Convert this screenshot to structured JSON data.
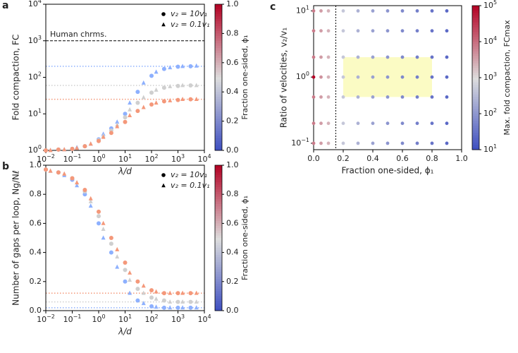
{
  "chart_data": [
    {
      "type": "scatter",
      "panel": "a",
      "xlabel": "λ/d",
      "ylabel": "Fold compaction, FC",
      "xlog": true,
      "ylog": true,
      "xlim": [
        0.01,
        10000
      ],
      "ylim": [
        1,
        10000
      ],
      "xticks": [
        {
          "value": 0.01,
          "label": "10",
          "exp": "−2"
        },
        {
          "value": 0.1,
          "label": "10",
          "exp": "−1"
        },
        {
          "value": 1,
          "label": "10",
          "exp": "0"
        },
        {
          "value": 10,
          "label": "10",
          "exp": "1"
        },
        {
          "value": 100,
          "label": "10",
          "exp": "2"
        },
        {
          "value": 1000,
          "label": "10",
          "exp": "3"
        },
        {
          "value": 10000,
          "label": "10",
          "exp": "4"
        }
      ],
      "yticks": [
        {
          "value": 1,
          "label": "10",
          "exp": "0"
        },
        {
          "value": 10,
          "label": "10",
          "exp": "1"
        },
        {
          "value": 100,
          "label": "10",
          "exp": "2"
        },
        {
          "value": 1000,
          "label": "10",
          "exp": "3"
        },
        {
          "value": 10000,
          "label": "10",
          "exp": "4"
        }
      ],
      "series": [
        {
          "marker": "circle",
          "color": "#8db0fe",
          "x": [
            0.01,
            0.03,
            0.1,
            0.3,
            1,
            3,
            10,
            30,
            100,
            300,
            1000,
            3000
          ],
          "values": [
            1.0,
            1.05,
            1.1,
            1.3,
            2,
            4,
            10,
            40,
            110,
            170,
            195,
            200
          ]
        },
        {
          "marker": "triangle",
          "color": "#8db0fe",
          "x": [
            0.015,
            0.05,
            0.15,
            0.5,
            1.5,
            5,
            15,
            50,
            150,
            500,
            1500,
            5000
          ],
          "values": [
            1.0,
            1.05,
            1.2,
            1.5,
            2.8,
            6,
            20,
            70,
            140,
            185,
            200,
            205
          ]
        },
        {
          "marker": "circle",
          "color": "#cfcfcf",
          "x": [
            0.01,
            0.03,
            0.1,
            0.3,
            1,
            3,
            10,
            30,
            100,
            300,
            1000,
            3000
          ],
          "values": [
            1.0,
            1.05,
            1.1,
            1.3,
            1.9,
            3.5,
            8,
            20,
            38,
            52,
            58,
            60
          ]
        },
        {
          "marker": "triangle",
          "color": "#cfcfcf",
          "x": [
            0.015,
            0.05,
            0.15,
            0.5,
            1.5,
            5,
            15,
            50,
            150,
            500,
            1500,
            5000
          ],
          "values": [
            1.0,
            1.05,
            1.15,
            1.5,
            2.5,
            5,
            13,
            28,
            45,
            56,
            60,
            60
          ]
        },
        {
          "marker": "circle",
          "color": "#f4987a",
          "x": [
            0.01,
            0.03,
            0.1,
            0.3,
            1,
            3,
            10,
            30,
            100,
            300,
            1000,
            3000
          ],
          "values": [
            1.0,
            1.05,
            1.1,
            1.3,
            1.8,
            3,
            6,
            12,
            18,
            22,
            24,
            25
          ]
        },
        {
          "marker": "triangle",
          "color": "#f4987a",
          "x": [
            0.015,
            0.05,
            0.15,
            0.5,
            1.5,
            5,
            15,
            50,
            150,
            500,
            1500,
            5000
          ],
          "values": [
            1.0,
            1.05,
            1.15,
            1.5,
            2.3,
            4.5,
            9,
            15,
            20,
            23,
            25,
            25
          ]
        }
      ],
      "reference_lines": [
        {
          "value": 200,
          "color": "#8db0fe"
        },
        {
          "value": 60,
          "color": "#cfcfcf"
        },
        {
          "value": 25,
          "color": "#f4987a"
        }
      ],
      "annotation_line": {
        "value": 1000,
        "label": "Human chrms."
      },
      "legend": [
        {
          "marker": "circle",
          "label": "v₂ = 10v₁"
        },
        {
          "marker": "triangle",
          "label": "v₂ = 0.1v₁"
        }
      ],
      "colorbar": {
        "label": "Fraction one-sided, ϕ₁",
        "colormap": "coolwarm",
        "lim": [
          0,
          1
        ],
        "ticks": [
          {
            "value": 0,
            "label": "0.0"
          },
          {
            "value": 0.2,
            "label": "0.2"
          },
          {
            "value": 0.4,
            "label": "0.4"
          },
          {
            "value": 0.6,
            "label": "0.6"
          },
          {
            "value": 0.8,
            "label": "0.8"
          },
          {
            "value": 1,
            "label": "1.0"
          }
        ]
      }
    },
    {
      "type": "scatter",
      "panel": "b",
      "xlabel": "λ/d",
      "ylabel": "Number of gaps per loop, Ng/Nℓ",
      "xlog": true,
      "ylog": false,
      "xlim": [
        0.01,
        10000
      ],
      "ylim": [
        0,
        1
      ],
      "xticks": [
        {
          "value": 0.01,
          "label": "10",
          "exp": "−2"
        },
        {
          "value": 0.1,
          "label": "10",
          "exp": "−1"
        },
        {
          "value": 1,
          "label": "10",
          "exp": "0"
        },
        {
          "value": 10,
          "label": "10",
          "exp": "1"
        },
        {
          "value": 100,
          "label": "10",
          "exp": "2"
        },
        {
          "value": 1000,
          "label": "10",
          "exp": "3"
        },
        {
          "value": 10000,
          "label": "10",
          "exp": "4"
        }
      ],
      "yticks": [
        {
          "value": 0,
          "label": "0.0"
        },
        {
          "value": 0.2,
          "label": "0.2"
        },
        {
          "value": 0.4,
          "label": "0.4"
        },
        {
          "value": 0.6,
          "label": "0.6"
        },
        {
          "value": 0.8,
          "label": "0.8"
        },
        {
          "value": 1,
          "label": "1.0"
        }
      ],
      "series": [
        {
          "marker": "circle",
          "color": "#8db0fe",
          "x": [
            0.01,
            0.03,
            0.1,
            0.3,
            1,
            3,
            10,
            30,
            100,
            300,
            1000,
            3000
          ],
          "values": [
            0.97,
            0.95,
            0.9,
            0.8,
            0.6,
            0.4,
            0.2,
            0.07,
            0.03,
            0.02,
            0.02,
            0.02
          ]
        },
        {
          "marker": "triangle",
          "color": "#8db0fe",
          "x": [
            0.015,
            0.05,
            0.15,
            0.5,
            1.5,
            5,
            15,
            50,
            150,
            500,
            1500,
            5000
          ],
          "values": [
            0.96,
            0.93,
            0.86,
            0.72,
            0.5,
            0.3,
            0.12,
            0.05,
            0.025,
            0.02,
            0.02,
            0.02
          ]
        },
        {
          "marker": "circle",
          "color": "#cfcfcf",
          "x": [
            0.01,
            0.03,
            0.1,
            0.3,
            1,
            3,
            10,
            30,
            100,
            300,
            1000,
            3000
          ],
          "values": [
            0.97,
            0.95,
            0.91,
            0.82,
            0.65,
            0.46,
            0.28,
            0.15,
            0.09,
            0.07,
            0.06,
            0.06
          ]
        },
        {
          "marker": "triangle",
          "color": "#cfcfcf",
          "x": [
            0.015,
            0.05,
            0.15,
            0.5,
            1.5,
            5,
            15,
            50,
            150,
            500,
            1500,
            5000
          ],
          "values": [
            0.96,
            0.94,
            0.88,
            0.75,
            0.56,
            0.37,
            0.21,
            0.12,
            0.08,
            0.06,
            0.06,
            0.06
          ]
        },
        {
          "marker": "circle",
          "color": "#f4987a",
          "x": [
            0.01,
            0.03,
            0.1,
            0.3,
            1,
            3,
            10,
            30,
            100,
            300,
            1000,
            3000
          ],
          "values": [
            0.97,
            0.95,
            0.91,
            0.83,
            0.68,
            0.5,
            0.33,
            0.2,
            0.14,
            0.12,
            0.12,
            0.12
          ]
        },
        {
          "marker": "triangle",
          "color": "#f4987a",
          "x": [
            0.015,
            0.05,
            0.15,
            0.5,
            1.5,
            5,
            15,
            50,
            150,
            500,
            1500,
            5000
          ],
          "values": [
            0.96,
            0.94,
            0.88,
            0.77,
            0.6,
            0.42,
            0.26,
            0.17,
            0.13,
            0.12,
            0.12,
            0.12
          ]
        }
      ],
      "reference_lines": [
        {
          "value": 0.02,
          "color": "#8db0fe"
        },
        {
          "value": 0.06,
          "color": "#cfcfcf"
        },
        {
          "value": 0.12,
          "color": "#f4987a"
        }
      ],
      "legend": [
        {
          "marker": "circle",
          "label": "v₂ = 10v₁"
        },
        {
          "marker": "triangle",
          "label": "v₂ = 0.1v₁"
        }
      ],
      "colorbar": {
        "label": "Fraction one-sided, ϕ₁",
        "colormap": "coolwarm",
        "lim": [
          0,
          1
        ],
        "ticks": [
          {
            "value": 0,
            "label": "0.0"
          },
          {
            "value": 0.2,
            "label": "0.2"
          },
          {
            "value": 0.4,
            "label": "0.4"
          },
          {
            "value": 0.6,
            "label": "0.6"
          },
          {
            "value": 0.8,
            "label": "0.8"
          },
          {
            "value": 1,
            "label": "1.0"
          }
        ]
      }
    },
    {
      "type": "heat-scatter",
      "panel": "c",
      "xlabel": "Fraction one-sided, ϕ₁",
      "ylabel": "Ratio of velocities, v₂/v₁",
      "xlog": false,
      "ylog": true,
      "xlim": [
        0,
        1
      ],
      "ylim": [
        0.08,
        12
      ],
      "xticks": [
        {
          "value": 0,
          "label": "0.0"
        },
        {
          "value": 0.2,
          "label": "0.2"
        },
        {
          "value": 0.4,
          "label": "0.4"
        },
        {
          "value": 0.6,
          "label": "0.6"
        },
        {
          "value": 0.8,
          "label": "0.8"
        },
        {
          "value": 1,
          "label": "1.0"
        }
      ],
      "yticks": [
        {
          "value": 0.1,
          "label": "10",
          "exp": "−1"
        },
        {
          "value": 1,
          "label": "10",
          "exp": "0"
        },
        {
          "value": 10,
          "label": "10",
          "exp": "1"
        }
      ],
      "x": [
        0,
        0,
        0,
        0,
        0,
        0,
        0,
        0.05,
        0.05,
        0.05,
        0.05,
        0.05,
        0.05,
        0.05,
        0.1,
        0.1,
        0.1,
        0.1,
        0.1,
        0.1,
        0.1,
        0.2,
        0.2,
        0.2,
        0.2,
        0.2,
        0.2,
        0.2,
        0.3,
        0.3,
        0.3,
        0.3,
        0.3,
        0.3,
        0.3,
        0.4,
        0.4,
        0.4,
        0.4,
        0.4,
        0.4,
        0.4,
        0.5,
        0.5,
        0.5,
        0.5,
        0.5,
        0.5,
        0.5,
        0.6,
        0.6,
        0.6,
        0.6,
        0.6,
        0.6,
        0.6,
        0.7,
        0.7,
        0.7,
        0.7,
        0.7,
        0.7,
        0.7,
        0.8,
        0.8,
        0.8,
        0.8,
        0.8,
        0.8,
        0.8,
        0.9,
        0.9,
        0.9,
        0.9,
        0.9,
        0.9,
        0.9
      ],
      "y": [
        0.1,
        0.2,
        0.5,
        1,
        2,
        5,
        10,
        0.1,
        0.2,
        0.5,
        1,
        2,
        5,
        10,
        0.1,
        0.2,
        0.5,
        1,
        2,
        5,
        10,
        0.1,
        0.2,
        0.5,
        1,
        2,
        5,
        10,
        0.1,
        0.2,
        0.5,
        1,
        2,
        5,
        10,
        0.1,
        0.2,
        0.5,
        1,
        2,
        5,
        10,
        0.1,
        0.2,
        0.5,
        1,
        2,
        5,
        10,
        0.1,
        0.2,
        0.5,
        1,
        2,
        5,
        10,
        0.1,
        0.2,
        0.5,
        1,
        2,
        5,
        10,
        0.1,
        0.2,
        0.5,
        1,
        2,
        5,
        10,
        0.1,
        0.2,
        0.5,
        1,
        2,
        5,
        10
      ],
      "values": [
        8000,
        8000,
        8000,
        100000,
        8000,
        8000,
        8000,
        4000,
        4000,
        4000,
        5000,
        4000,
        4000,
        4000,
        2500,
        2500,
        2500,
        2500,
        2500,
        2500,
        2500,
        500,
        500,
        500,
        500,
        500,
        500,
        500,
        250,
        250,
        250,
        250,
        250,
        250,
        250,
        150,
        150,
        150,
        150,
        150,
        150,
        150,
        100,
        100,
        100,
        100,
        100,
        100,
        100,
        70,
        70,
        70,
        70,
        70,
        70,
        70,
        50,
        50,
        50,
        50,
        50,
        50,
        50,
        35,
        35,
        35,
        35,
        35,
        35,
        35,
        25,
        25,
        25,
        25,
        25,
        25,
        25
      ],
      "highlight": {
        "color": "#fbfbc4",
        "x": [
          0.2,
          0.8
        ],
        "y": [
          0.5,
          2
        ]
      },
      "vline": 0.15,
      "colorbar": {
        "label": "Max. fold compaction, FCmax",
        "colormap": "coolwarm",
        "log": true,
        "lim": [
          10,
          100000
        ],
        "ticks": [
          {
            "value": 10,
            "label": "10",
            "exp": "1"
          },
          {
            "value": 100,
            "label": "10",
            "exp": "2"
          },
          {
            "value": 1000,
            "label": "10",
            "exp": "3"
          },
          {
            "value": 10000,
            "label": "10",
            "exp": "4"
          },
          {
            "value": 100000,
            "label": "10",
            "exp": "5"
          }
        ]
      }
    }
  ]
}
